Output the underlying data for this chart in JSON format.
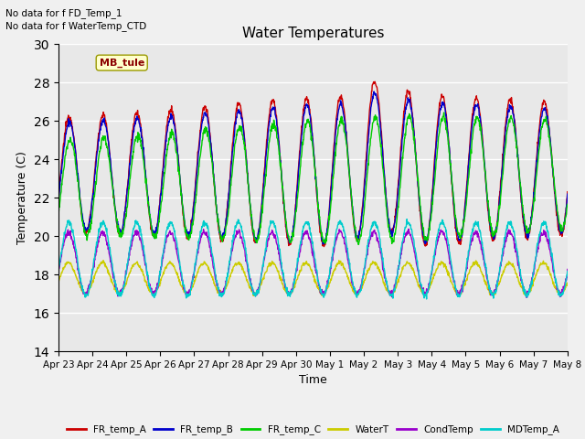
{
  "title": "Water Temperatures",
  "xlabel": "Time",
  "ylabel": "Temperature (C)",
  "ylim": [
    14,
    30
  ],
  "yticks": [
    14,
    16,
    18,
    20,
    22,
    24,
    26,
    28,
    30
  ],
  "plot_bg": "#e8e8e8",
  "fig_bg": "#f0f0f0",
  "annotations": [
    "No data for f FD_Temp_1",
    "No data for f WaterTemp_CTD"
  ],
  "mb_tule_label": "MB_tule",
  "series_colors": {
    "FR_temp_A": "#cc0000",
    "FR_temp_B": "#0000cc",
    "FR_temp_C": "#00cc00",
    "WaterT": "#cccc00",
    "CondTemp": "#9900cc",
    "MDTemp_A": "#00cccc"
  },
  "x_tick_labels": [
    "Apr 23",
    "Apr 24",
    "Apr 25",
    "Apr 26",
    "Apr 27",
    "Apr 28",
    "Apr 29",
    "Apr 30",
    "May 1",
    "May 2",
    "May 3",
    "May 4",
    "May 5",
    "May 6",
    "May 7",
    "May 8"
  ],
  "figsize": [
    6.4,
    4.8
  ],
  "dpi": 100
}
